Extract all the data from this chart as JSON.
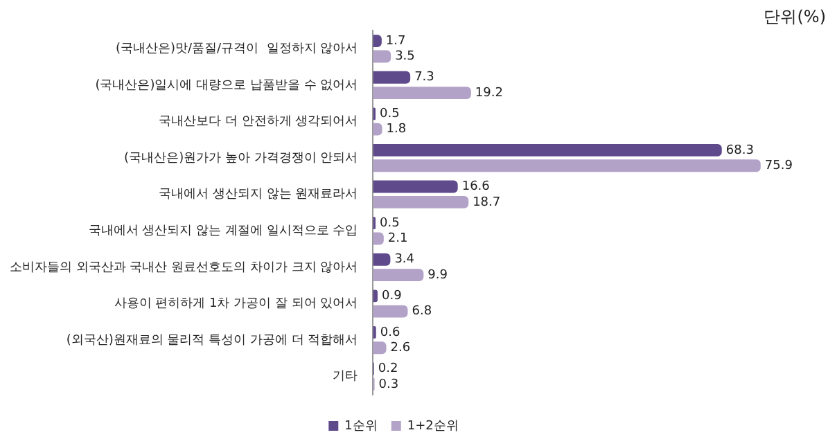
{
  "chart_data": {
    "type": "bar",
    "orientation": "horizontal",
    "annotations": [
      "단위(%)"
    ],
    "categories": [
      "(국내산은)맛/품질/규격이  일정하지 않아서",
      "(국내산은)일시에 대량으로 납품받을 수 없어서",
      "국내산보다 더 안전하게 생각되어서",
      "(국내산은)원가가 높아 가격경쟁이 안되서",
      "국내에서 생산되지 않는 원재료라서",
      "국내에서 생산되지 않는 계절에 일시적으로 수입",
      "소비자들의 외국산과 국내산 원료선호도의 차이가 크지 않아서",
      "사용이 편히하게 1차 가공이 잘 되어 있어서",
      "(외국산)원재료의 물리적 특성이 가공에 더 적합해서",
      "기타"
    ],
    "series": [
      {
        "name": "1순위",
        "color": "#5f4b8b",
        "values": [
          1.7,
          7.3,
          0.5,
          68.3,
          16.6,
          0.5,
          3.4,
          0.9,
          0.6,
          0.2
        ]
      },
      {
        "name": "1+2순위",
        "color": "#b3a2c7",
        "values": [
          3.5,
          19.2,
          1.8,
          75.9,
          18.7,
          2.1,
          9.9,
          6.8,
          2.6,
          0.3
        ]
      }
    ],
    "data_labels": true,
    "grid": false,
    "legend": "bottom"
  }
}
